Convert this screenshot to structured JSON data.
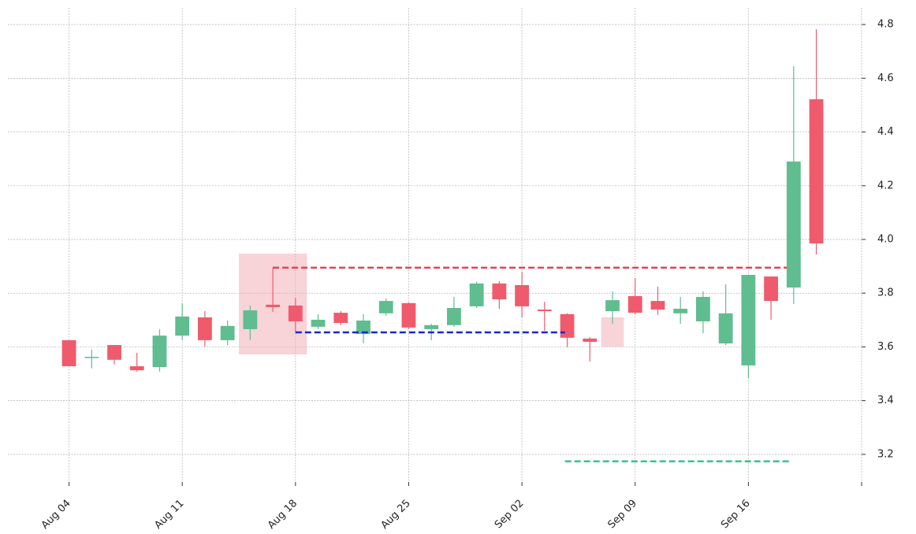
{
  "chart_data": {
    "type": "candlestick",
    "categories": [
      "Aug 04",
      null,
      null,
      null,
      null,
      "Aug 11",
      null,
      null,
      null,
      null,
      "Aug 18",
      null,
      null,
      null,
      null,
      "Aug 25",
      null,
      null,
      null,
      null,
      "Sep 02",
      null,
      null,
      null,
      null,
      "Sep 09",
      null,
      null,
      null,
      null,
      "Sep 16",
      null,
      null,
      null
    ],
    "open": [
      3.625,
      3.56,
      3.607,
      3.528,
      3.525,
      3.642,
      3.71,
      3.625,
      3.666,
      3.757,
      3.754,
      3.675,
      3.727,
      3.648,
      3.725,
      3.763,
      3.666,
      3.681,
      3.751,
      3.836,
      3.83,
      3.739,
      3.722,
      3.631,
      3.733,
      3.789,
      3.771,
      3.725,
      3.695,
      3.613,
      3.531,
      3.862,
      3.821,
      4.522
    ],
    "high": [
      3.625,
      3.59,
      3.607,
      3.578,
      3.666,
      3.763,
      3.733,
      3.698,
      3.754,
      3.895,
      3.783,
      3.722,
      3.733,
      3.722,
      3.78,
      3.766,
      3.686,
      3.786,
      3.842,
      3.845,
      3.88,
      3.768,
      3.725,
      3.636,
      3.807,
      3.856,
      3.824,
      3.786,
      3.807,
      3.833,
      3.868,
      3.862,
      4.645,
      4.782
    ],
    "low": [
      3.528,
      3.52,
      3.535,
      3.508,
      3.508,
      3.625,
      3.601,
      3.607,
      3.625,
      3.73,
      3.655,
      3.666,
      3.681,
      3.613,
      3.716,
      3.666,
      3.625,
      3.675,
      3.745,
      3.742,
      3.71,
      3.66,
      3.599,
      3.546,
      3.686,
      3.722,
      3.719,
      3.686,
      3.651,
      3.607,
      3.484,
      3.701,
      3.76,
      3.944
    ],
    "close": [
      3.528,
      3.563,
      3.552,
      3.513,
      3.642,
      3.713,
      3.625,
      3.678,
      3.736,
      3.748,
      3.695,
      3.701,
      3.689,
      3.698,
      3.771,
      3.672,
      3.681,
      3.745,
      3.836,
      3.777,
      3.751,
      3.733,
      3.634,
      3.619,
      3.774,
      3.727,
      3.739,
      3.742,
      3.786,
      3.725,
      3.868,
      3.771,
      4.29,
      3.985
    ],
    "up_color": "#5fbd8f",
    "down_color": "#ef5b6c",
    "xlim": [
      -2.7,
      35
    ],
    "ylim": [
      3.097,
      4.862
    ],
    "yticks": [
      3.2,
      3.4,
      3.6,
      3.8,
      {
        "value": 4,
        "label": "4.0"
      },
      4.2,
      4.4,
      4.6,
      4.8
    ],
    "grid": true,
    "shapes": [
      {
        "kind": "rect",
        "x": [
          7.5,
          10.5
        ],
        "y": [
          3.572,
          3.947
        ],
        "color": "#f2a7b2"
      },
      {
        "kind": "rect",
        "x": [
          23.5,
          24.5
        ],
        "y": [
          3.601,
          3.71
        ],
        "color": "#f2a7b2"
      },
      {
        "kind": "hline",
        "x": [
          9,
          31.7
        ],
        "y": 3.895,
        "color": "#e8414f"
      },
      {
        "kind": "hline",
        "x": [
          10,
          21.9
        ],
        "y": 3.654,
        "color": "#1726d4"
      },
      {
        "kind": "hline",
        "x": [
          21.9,
          31.9
        ],
        "y": 3.174,
        "color": "#2cc98a"
      }
    ]
  }
}
